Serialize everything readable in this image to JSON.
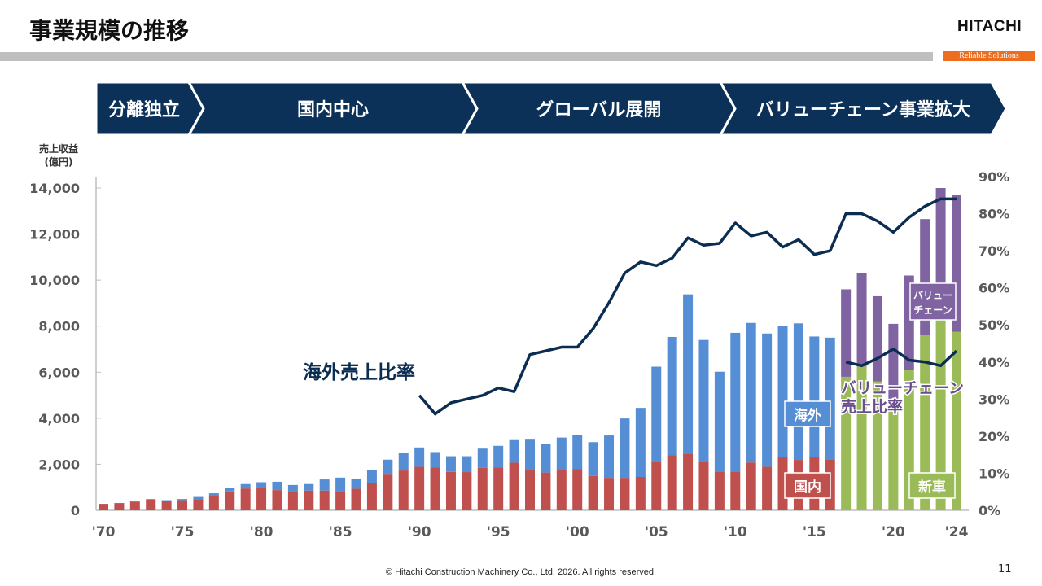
{
  "header": {
    "title": "事業規模の推移",
    "logo": "HITACHI",
    "tagline": "Reliable Solutions"
  },
  "phases": [
    "分離独立",
    "国内中心",
    "グローバル展開",
    "バリューチェーン事業拡大"
  ],
  "footer": {
    "copyright": "© Hitachi Construction Machinery Co., Ltd. 2026. All rights reserved.",
    "page": "11"
  },
  "colors": {
    "domestic": "#C0504D",
    "overseas": "#558ED5",
    "new_machine": "#9BBB59",
    "value_chain": "#8064A2",
    "line": "#0B2D52",
    "banner": "#0B3158"
  },
  "chart_data": {
    "type": "bar+line",
    "ylabel": "売上収益\n(億円)",
    "ylabel_lines": [
      "売上収益",
      "(億円)"
    ],
    "ylim": [
      0,
      14000
    ],
    "yticks": [
      "0",
      "2,000",
      "4,000",
      "6,000",
      "8,000",
      "10,000",
      "12,000",
      "14,000"
    ],
    "y2lim": [
      0,
      90
    ],
    "y2ticks": [
      "0%",
      "10%",
      "20%",
      "30%",
      "40%",
      "50%",
      "60%",
      "70%",
      "80%",
      "90%"
    ],
    "xticks": [
      "'70",
      "'75",
      "'80",
      "'85",
      "'90",
      "'95",
      "'00",
      "'05",
      "'10",
      "'15",
      "'20",
      "'24"
    ],
    "xtick_years": [
      1970,
      1975,
      1980,
      1985,
      1990,
      1995,
      2000,
      2005,
      2010,
      2015,
      2020,
      2024
    ],
    "years_start": 1970,
    "years_end": 2024,
    "segment1": {
      "years": [
        1970,
        1971,
        1972,
        1973,
        1974,
        1975,
        1976,
        1977,
        1978,
        1979,
        1980,
        1981,
        1982,
        1983,
        1984,
        1985,
        1986,
        1987,
        1988,
        1989,
        1990,
        1991,
        1992,
        1993,
        1994,
        1995,
        1996,
        1997,
        1998,
        1999,
        2000,
        2001,
        2002,
        2003,
        2004,
        2005,
        2006,
        2007,
        2008,
        2009,
        2010,
        2011,
        2012,
        2013,
        2014,
        2015,
        2016
      ],
      "series": [
        {
          "name": "国内",
          "values": [
            280,
            300,
            380,
            460,
            420,
            440,
            480,
            610,
            820,
            950,
            980,
            880,
            840,
            860,
            860,
            840,
            940,
            1200,
            1550,
            1730,
            1890,
            1870,
            1670,
            1660,
            1850,
            1870,
            2070,
            1760,
            1640,
            1760,
            1800,
            1490,
            1410,
            1410,
            1450,
            2110,
            2400,
            2460,
            2110,
            1690,
            1690,
            2080,
            1890,
            2310,
            2190,
            2310,
            2220
          ]
        },
        {
          "name": "海外",
          "values": [
            0,
            20,
            40,
            30,
            20,
            50,
            100,
            130,
            140,
            190,
            240,
            360,
            260,
            280,
            480,
            580,
            440,
            540,
            650,
            760,
            840,
            660,
            680,
            690,
            830,
            930,
            980,
            1310,
            1250,
            1400,
            1460,
            1470,
            1840,
            2580,
            3000,
            4130,
            5130,
            6920,
            5290,
            4330,
            6020,
            6060,
            5790,
            5690,
            5930,
            5240,
            5280
          ]
        }
      ]
    },
    "segment2": {
      "years": [
        2017,
        2018,
        2019,
        2020,
        2021,
        2022,
        2023,
        2024
      ],
      "series": [
        {
          "name": "新車",
          "values": [
            5800,
            6250,
            5600,
            4800,
            6100,
            7600,
            8300,
            7750
          ]
        },
        {
          "name": "バリューチェーン",
          "values": [
            3800,
            4050,
            3700,
            3300,
            4100,
            5050,
            5700,
            5950
          ]
        }
      ]
    },
    "lines": [
      {
        "name": "海外売上比率",
        "axis": "right",
        "years": [
          1990,
          1991,
          1992,
          1993,
          1994,
          1995,
          1996,
          1997,
          1998,
          1999,
          2000,
          2001,
          2002,
          2003,
          2004,
          2005,
          2006,
          2007,
          2008,
          2009,
          2010,
          2011,
          2012,
          2013,
          2014,
          2015,
          2016,
          2017,
          2018,
          2019,
          2020,
          2021,
          2022,
          2023,
          2024
        ],
        "values": [
          31,
          26,
          29,
          30,
          31,
          33,
          32,
          42,
          43,
          44,
          44,
          49,
          56,
          64,
          67,
          66,
          68,
          73.5,
          71.5,
          72,
          77.5,
          74,
          75,
          71,
          73,
          69,
          70,
          80,
          80,
          78,
          75,
          79,
          82,
          84,
          84
        ]
      },
      {
        "name": "バリューチェーン売上比率",
        "name_lines": [
          "バリューチェーン",
          "売上比率"
        ],
        "axis": "right",
        "years": [
          2017,
          2018,
          2019,
          2020,
          2021,
          2022,
          2023,
          2024
        ],
        "values": [
          40,
          39,
          41,
          43.5,
          40.5,
          40,
          39,
          43
        ]
      }
    ],
    "labels": {
      "overseas": "海外",
      "domestic": "国内",
      "new_machine": "新車",
      "value_chain_lines": [
        "バリュー",
        "チェーン"
      ]
    }
  }
}
